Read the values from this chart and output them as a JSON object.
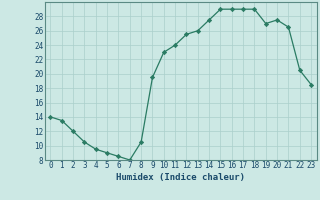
{
  "x": [
    0,
    1,
    2,
    3,
    4,
    5,
    6,
    7,
    8,
    9,
    10,
    11,
    12,
    13,
    14,
    15,
    16,
    17,
    18,
    19,
    20,
    21,
    22,
    23
  ],
  "y": [
    14,
    13.5,
    12,
    10.5,
    9.5,
    9,
    8.5,
    8,
    10.5,
    19.5,
    23,
    24,
    25.5,
    26,
    27.5,
    29,
    29,
    29,
    29,
    27,
    27.5,
    26.5,
    20.5,
    18.5
  ],
  "line_color": "#2a7b63",
  "marker": "D",
  "markersize": 2.2,
  "bg_color": "#cce8e4",
  "grid_color": "#aacfcb",
  "xlabel": "Humidex (Indice chaleur)",
  "ylabel": "",
  "xlim": [
    -0.5,
    23.5
  ],
  "ylim": [
    8,
    30
  ],
  "yticks": [
    8,
    10,
    12,
    14,
    16,
    18,
    20,
    22,
    24,
    26,
    28
  ],
  "xticks": [
    0,
    1,
    2,
    3,
    4,
    5,
    6,
    7,
    8,
    9,
    10,
    11,
    12,
    13,
    14,
    15,
    16,
    17,
    18,
    19,
    20,
    21,
    22,
    23
  ],
  "tick_label_fontsize": 5.5,
  "xlabel_fontsize": 6.5,
  "tick_color": "#1a4a6a",
  "spine_color": "#5a8a84"
}
